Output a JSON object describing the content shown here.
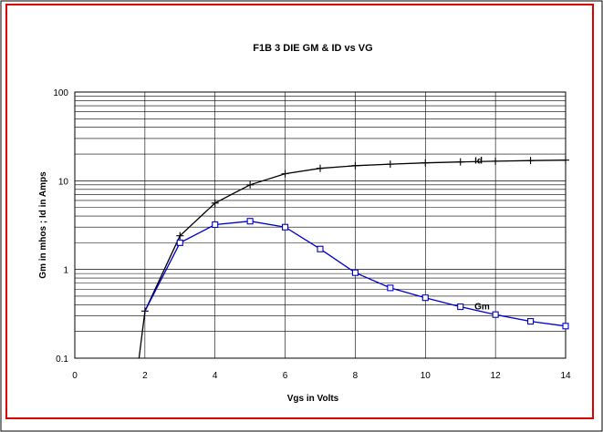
{
  "chart_data": {
    "type": "line",
    "title": "F1B 3 DIE GM & ID vs VG",
    "xlabel": "Vgs in Volts",
    "ylabel": "Gm in  mhos ;  Id in Amps",
    "xlim": [
      0,
      14
    ],
    "ylim": [
      0.1,
      100
    ],
    "yscale": "log",
    "grid": true,
    "x_ticks": [
      "0",
      "2",
      "4",
      "6",
      "8",
      "10",
      "12",
      "14"
    ],
    "y_ticks": [
      "0.1",
      "1",
      "10",
      "100"
    ],
    "series": [
      {
        "name": "Id",
        "color": "#000000",
        "marker": "plus",
        "x": [
          1.8,
          2,
          3,
          4,
          5,
          6,
          7,
          8,
          9,
          10,
          11,
          12,
          13,
          14
        ],
        "y": [
          0.08,
          0.34,
          2.4,
          5.6,
          9,
          12,
          13.8,
          14.8,
          15.4,
          15.9,
          16.3,
          16.6,
          16.9,
          17.1
        ],
        "markers": [
          false,
          true,
          true,
          true,
          true,
          true,
          true,
          true,
          true,
          true,
          true,
          true,
          true,
          true
        ]
      },
      {
        "name": "Gm",
        "color": "#0000cc",
        "marker": "square",
        "x": [
          2,
          3,
          4,
          5,
          6,
          7,
          8,
          9,
          10,
          11,
          12,
          13,
          14
        ],
        "y": [
          0.34,
          2,
          3.2,
          3.5,
          3,
          1.7,
          0.92,
          0.62,
          0.48,
          0.38,
          0.31,
          0.26,
          0.23
        ],
        "markers": [
          false,
          true,
          true,
          true,
          true,
          true,
          true,
          true,
          true,
          true,
          true,
          true,
          true
        ]
      }
    ],
    "annotations": [
      {
        "text": "Id",
        "x": 11.4,
        "y": 17.2
      },
      {
        "text": "Gm",
        "x": 11.4,
        "y": 0.39
      }
    ],
    "colors": {
      "frame_border": "#e00000",
      "plot_border": "#000000"
    }
  }
}
